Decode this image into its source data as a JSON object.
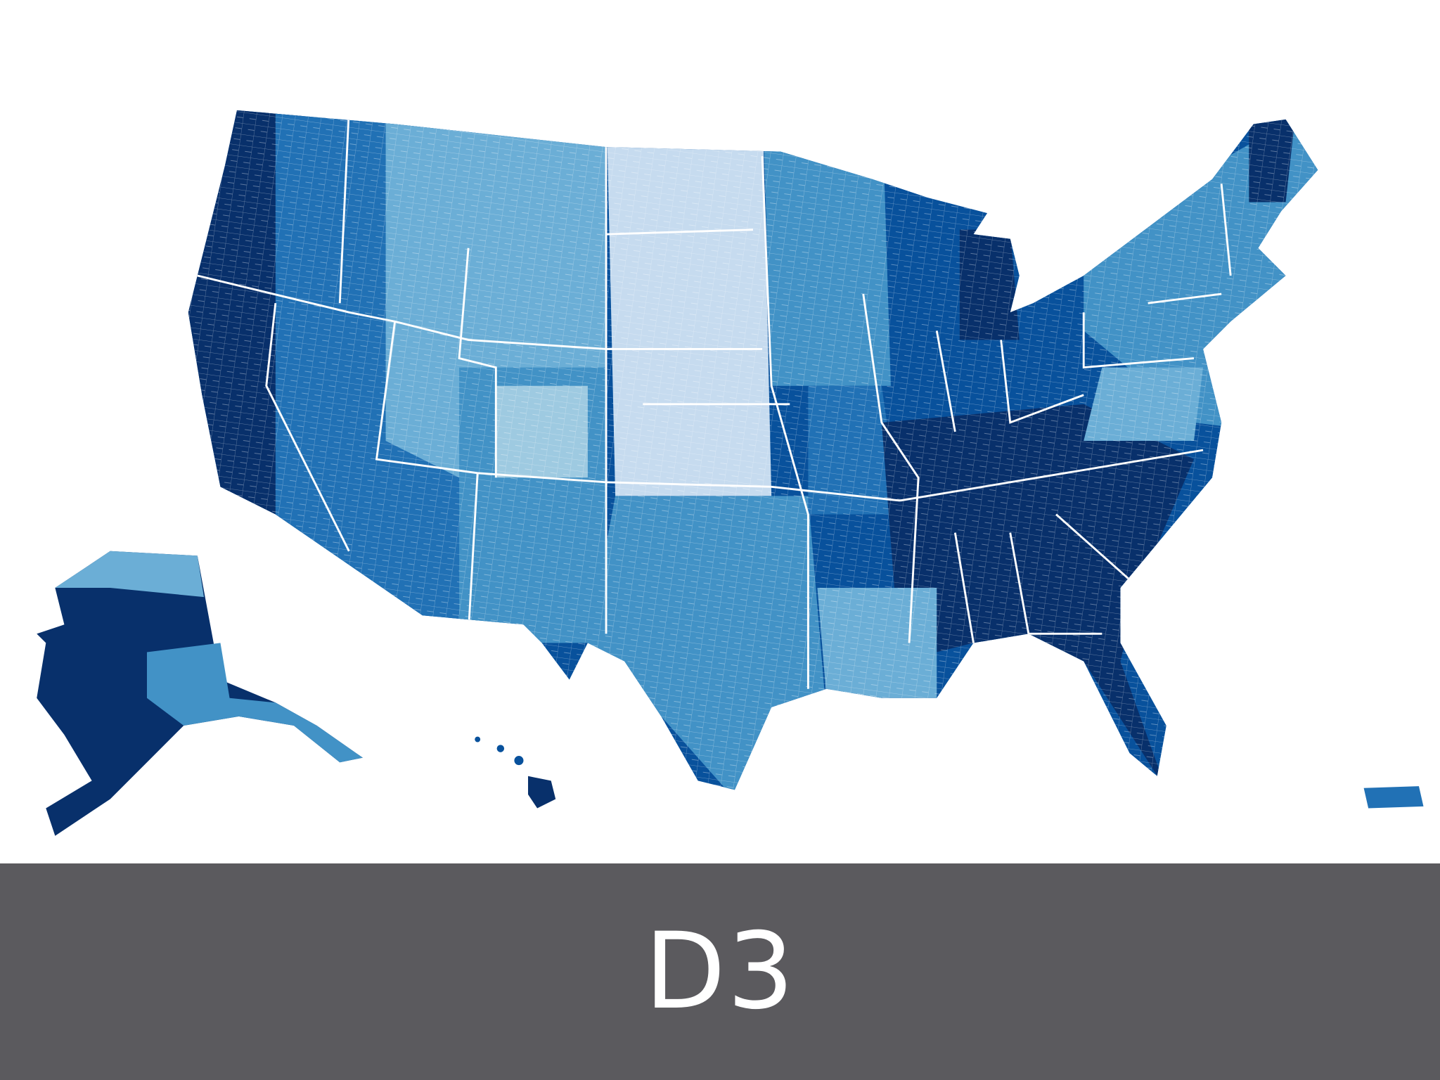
{
  "banner": {
    "label": "D3"
  }
}
